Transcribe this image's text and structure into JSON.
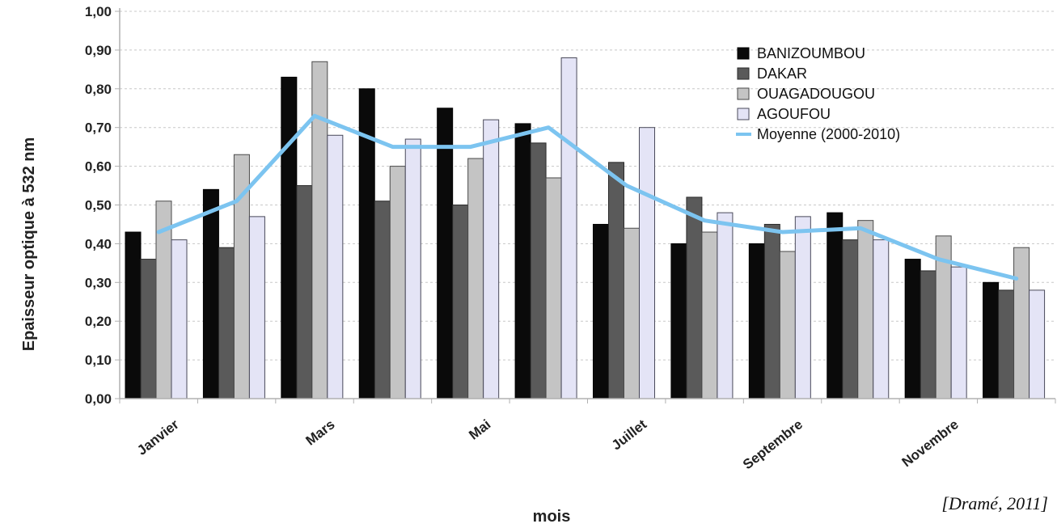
{
  "colors": {
    "banizoumbou": "#0a0a0a",
    "dakar": "#5a5a5a",
    "ouagadougou": "#c4c4c4",
    "agoufou": "#e4e4f6",
    "moyenne": "#7cc4f0",
    "grid": "#c8c8c8",
    "axis": "#b0b0b0"
  },
  "citation": "[Dramé, 2011]",
  "chart_data": {
    "type": "bar",
    "title": "",
    "xlabel": "mois",
    "ylabel": "Epaisseur optique à 532 nm",
    "ylim": [
      0,
      1
    ],
    "yticks": [
      "0,00",
      "0,10",
      "0,20",
      "0,30",
      "0,40",
      "0,50",
      "0,60",
      "0,70",
      "0,80",
      "0,90",
      "1,00"
    ],
    "grid": "horizontal dotted",
    "legend_position": "top-right",
    "categories": [
      "Janvier",
      "",
      "Mars",
      "",
      "Mai",
      "",
      "Juillet",
      "",
      "Septembre",
      "",
      "Novembre",
      ""
    ],
    "series": [
      {
        "name": "BANIZOUMBOU",
        "type": "bar",
        "values": [
          0.43,
          0.54,
          0.83,
          0.8,
          0.75,
          0.71,
          0.45,
          0.4,
          0.4,
          0.48,
          0.36,
          0.3
        ]
      },
      {
        "name": "DAKAR",
        "type": "bar",
        "values": [
          0.36,
          0.39,
          0.55,
          0.51,
          0.5,
          0.66,
          0.61,
          0.52,
          0.45,
          0.41,
          0.33,
          0.28
        ]
      },
      {
        "name": "OUAGADOUGOU",
        "type": "bar",
        "values": [
          0.51,
          0.63,
          0.87,
          0.6,
          0.62,
          0.57,
          0.44,
          0.43,
          0.38,
          0.46,
          0.42,
          0.39
        ]
      },
      {
        "name": "AGOUFOU",
        "type": "bar",
        "values": [
          0.41,
          0.47,
          0.68,
          0.67,
          0.72,
          0.88,
          0.7,
          0.48,
          0.47,
          0.41,
          0.34,
          0.28
        ]
      },
      {
        "name": "Moyenne (2000-2010)",
        "type": "line",
        "values": [
          0.43,
          0.51,
          0.73,
          0.65,
          0.65,
          0.7,
          0.55,
          0.46,
          0.43,
          0.44,
          0.36,
          0.31
        ]
      }
    ]
  }
}
